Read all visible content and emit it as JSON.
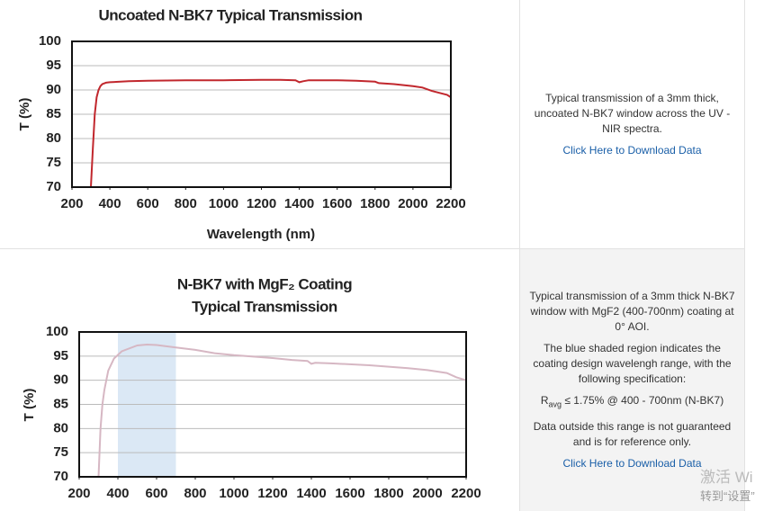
{
  "chart_data": [
    {
      "type": "line",
      "title": "Uncoated N-BK7 Typical Transmission",
      "xlabel": "Wavelength (nm)",
      "ylabel": "T (%)",
      "x": [
        300,
        310,
        320,
        330,
        340,
        350,
        360,
        380,
        400,
        500,
        600,
        800,
        1000,
        1200,
        1300,
        1380,
        1400,
        1420,
        1450,
        1600,
        1700,
        1800,
        1820,
        1900,
        2000,
        2050,
        2100,
        2150,
        2180,
        2200
      ],
      "values": [
        70,
        78,
        85,
        88.5,
        90,
        90.8,
        91.2,
        91.5,
        91.6,
        91.8,
        91.9,
        92,
        92,
        92.1,
        92.1,
        92,
        91.6,
        91.8,
        92,
        92,
        91.9,
        91.7,
        91.4,
        91.2,
        90.8,
        90.5,
        89.8,
        89.3,
        89,
        88.5
      ],
      "color": "#c1272d",
      "xlim": [
        200,
        2200
      ],
      "ylim": [
        70,
        100
      ],
      "xticks": [
        200,
        400,
        600,
        800,
        1000,
        1200,
        1400,
        1600,
        1800,
        2000,
        2200
      ],
      "yticks": [
        70,
        75,
        80,
        85,
        90,
        95,
        100
      ],
      "grid": true
    },
    {
      "type": "line",
      "title": [
        "N-BK7 with MgF₂ Coating",
        "Typical Transmission"
      ],
      "ylabel": "T (%)",
      "x": [
        300,
        310,
        320,
        330,
        350,
        380,
        420,
        500,
        550,
        600,
        700,
        800,
        900,
        1000,
        1200,
        1300,
        1380,
        1400,
        1420,
        1500,
        1700,
        1800,
        1900,
        2000,
        2100,
        2150,
        2200
      ],
      "values": [
        70,
        80,
        85,
        88,
        92,
        94.5,
        96,
        97.2,
        97.4,
        97.3,
        96.8,
        96.3,
        95.6,
        95.2,
        94.6,
        94.2,
        94,
        93.4,
        93.6,
        93.5,
        93.1,
        92.8,
        92.5,
        92.1,
        91.5,
        90.6,
        90
      ],
      "color": "#d6b7c3",
      "shaded_region": [
        400,
        700
      ],
      "shade_color": "#dbe8f5",
      "xlim": [
        200,
        2200
      ],
      "ylim": [
        70,
        100
      ],
      "xticks": [
        200,
        400,
        600,
        800,
        1000,
        1200,
        1400,
        1600,
        1800,
        2000,
        2200
      ],
      "yticks": [
        70,
        75,
        80,
        85,
        90,
        95,
        100
      ],
      "grid": true
    }
  ],
  "panels": [
    {
      "paragraphs": [
        "Typical transmission of a 3mm thick, uncoated N-BK7 window across the UV - NIR spectra."
      ],
      "link": "Click Here to Download Data"
    },
    {
      "paragraphs": [
        "Typical transmission of a 3mm thick N-BK7 window with MgF2 (400-700nm) coating at 0° AOI.",
        "The blue shaded region indicates the coating design wavelengh range, with the following specification:"
      ],
      "spec": {
        "symbol": "R",
        "subscript": "avg",
        "text": "≤ 1.75% @ 400 - 700nm (N-BK7)"
      },
      "note": "Data outside this range is not guaranteed and is for reference only.",
      "link": "Click Here to Download Data"
    }
  ],
  "watermark": [
    "激活 Wi",
    "转到“设置”"
  ]
}
